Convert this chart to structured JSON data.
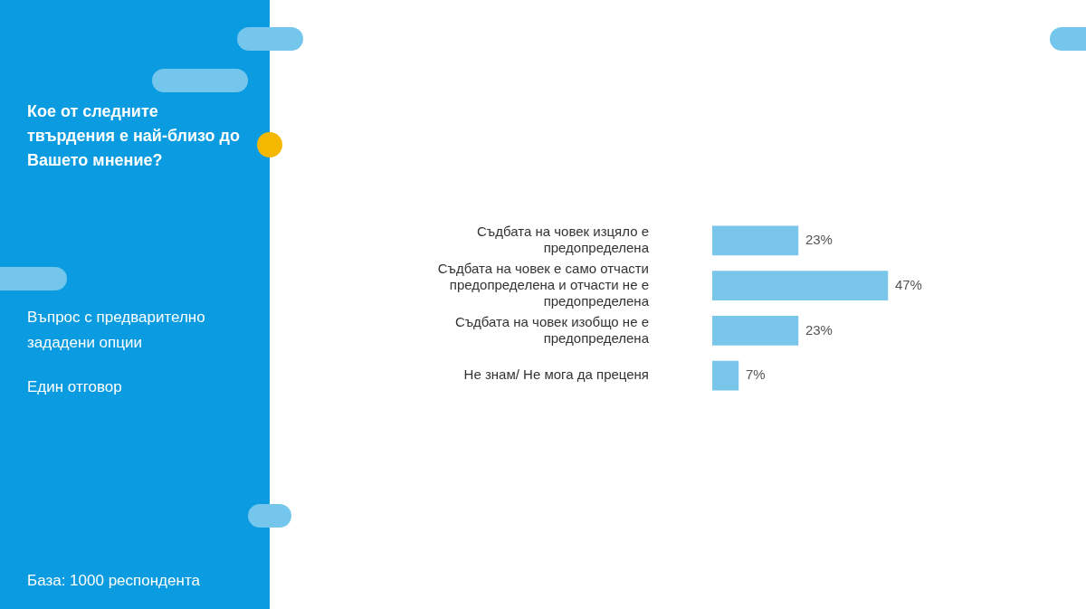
{
  "chart_data": {
    "type": "bar",
    "orientation": "horizontal",
    "title": "Кое от следните твърдения е най-близо до Вашето мнение?",
    "subtitle": "Въпрос с предварително зададени опции",
    "annotations": [
      "Един отговор",
      "База:  1000 респондента"
    ],
    "categories": [
      "Съдбата на човек изцяло е предопределена",
      "Съдбата на човек е само отчасти предопределена и отчасти не е предопределена",
      "Съдбата на човек изобщо не е предопределена",
      "Не знам/ Не мога да преценя"
    ],
    "values": [
      23,
      47,
      23,
      7
    ],
    "color": "#79c6ea",
    "value_labels": [
      "23%",
      "47%",
      "23%",
      "7%"
    ]
  }
}
